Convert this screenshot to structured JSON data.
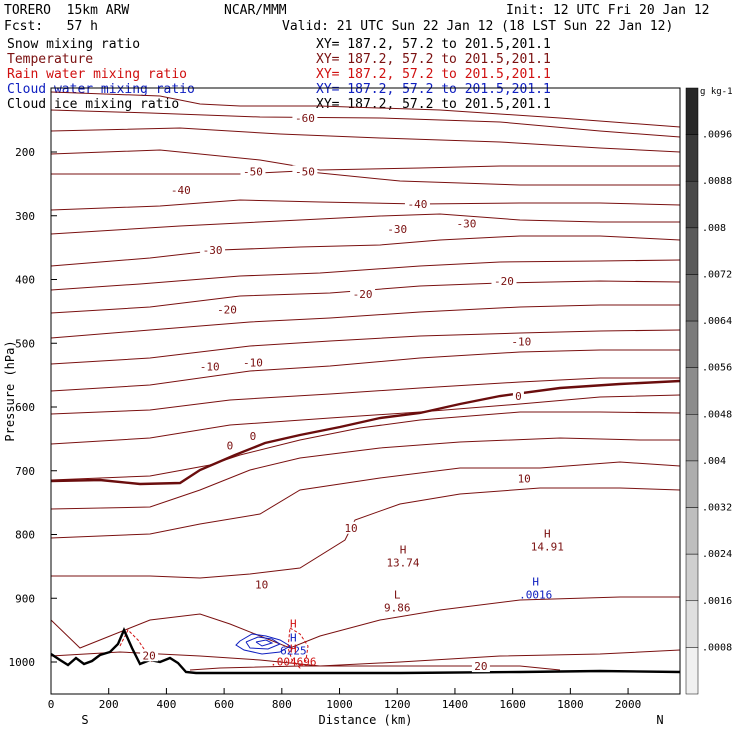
{
  "header": {
    "model": "TORERO  15km ARW",
    "org": "NCAR/MMM",
    "init": "Init: 12 UTC Fri 20 Jan 12",
    "fcst": "Fcst:   57 h",
    "valid": "Valid: 21 UTC Sun 22 Jan 12 (18 LST Sun 22 Jan 12)"
  },
  "fields": [
    {
      "name": "Snow mixing ratio",
      "xy": "XY= 187.2, 57.2 to 201.5,201.1",
      "color": "#000000"
    },
    {
      "name": "Temperature",
      "xy": "XY= 187.2, 57.2 to 201.5,201.1",
      "color": "#7a1010"
    },
    {
      "name": "Rain water mixing ratio",
      "xy": "XY= 187.2, 57.2 to 201.5,201.1",
      "color": "#d01010"
    },
    {
      "name": "Cloud water mixing ratio",
      "xy": "XY= 187.2, 57.2 to 201.5,201.1",
      "color": "#1020c0"
    },
    {
      "name": "Cloud ice mixing ratio",
      "xy": "XY= 187.2, 57.2 to 201.5,201.1",
      "color": "#000000"
    }
  ],
  "colorbar": {
    "unit": "g kg-1",
    "labels": [
      ".0096",
      ".0088",
      ".008",
      ".0072",
      ".0064",
      ".0056",
      ".0048",
      ".004",
      ".0032",
      ".0024",
      ".0016",
      ".0008"
    ]
  },
  "chart_data": {
    "type": "contour cross-section",
    "xlabel": "Distance (km)",
    "ylabel": "Pressure (hPa)",
    "xlim": [
      0,
      2180
    ],
    "ylim": [
      1050,
      100
    ],
    "x_ticks": [
      0,
      200,
      400,
      600,
      800,
      1000,
      1200,
      1400,
      1600,
      1800,
      2000
    ],
    "y_ticks": [
      200,
      300,
      400,
      500,
      600,
      700,
      800,
      900,
      1000
    ],
    "endpoint_labels": {
      "left": "S",
      "right": "N"
    },
    "temperature_contour_labels": [
      {
        "text": "-60",
        "x": 880,
        "p": 148
      },
      {
        "text": "-50",
        "x": 700,
        "p": 232
      },
      {
        "text": "-50",
        "x": 880,
        "p": 232
      },
      {
        "text": "-40",
        "x": 450,
        "p": 261
      },
      {
        "text": "-40",
        "x": 1270,
        "p": 283
      },
      {
        "text": "-30",
        "x": 560,
        "p": 355
      },
      {
        "text": "-30",
        "x": 1200,
        "p": 322
      },
      {
        "text": "-30",
        "x": 1440,
        "p": 314
      },
      {
        "text": "-20",
        "x": 1080,
        "p": 424
      },
      {
        "text": "-20",
        "x": 1570,
        "p": 404
      },
      {
        "text": "-20",
        "x": 610,
        "p": 449
      },
      {
        "text": "-10",
        "x": 1630,
        "p": 499
      },
      {
        "text": "-10",
        "x": 550,
        "p": 538
      },
      {
        "text": "-10",
        "x": 700,
        "p": 532
      },
      {
        "text": "0",
        "x": 620,
        "p": 662
      },
      {
        "text": "0",
        "x": 700,
        "p": 647
      },
      {
        "text": "0",
        "x": 1620,
        "p": 584
      },
      {
        "text": "10",
        "x": 1640,
        "p": 714
      },
      {
        "text": "10",
        "x": 1040,
        "p": 791
      },
      {
        "text": "10",
        "x": 730,
        "p": 880
      },
      {
        "text": "20",
        "x": 340,
        "p": 991
      },
      {
        "text": "20",
        "x": 1490,
        "p": 1008
      }
    ],
    "extrema_labels": [
      {
        "type": "H",
        "value": "13.74",
        "x": 1220,
        "p": 830,
        "color": "#7a1010"
      },
      {
        "type": "H",
        "value": "14.91",
        "x": 1720,
        "p": 805,
        "color": "#7a1010"
      },
      {
        "type": "L",
        "value": "9.86",
        "x": 1200,
        "p": 900,
        "color": "#7a1010"
      },
      {
        "type": "H",
        "value": ".0016",
        "x": 1680,
        "p": 880,
        "color": "#1020c0"
      },
      {
        "type": "H",
        "value": "6225",
        "x": 840,
        "p": 968,
        "color": "#1020c0"
      },
      {
        "type": "H",
        "value": ".004696",
        "x": 840,
        "p": 985,
        "color": "#d01010"
      },
      {
        "type": "H",
        "value": "",
        "x": 840,
        "p": 946,
        "color": "#d01010"
      }
    ]
  }
}
